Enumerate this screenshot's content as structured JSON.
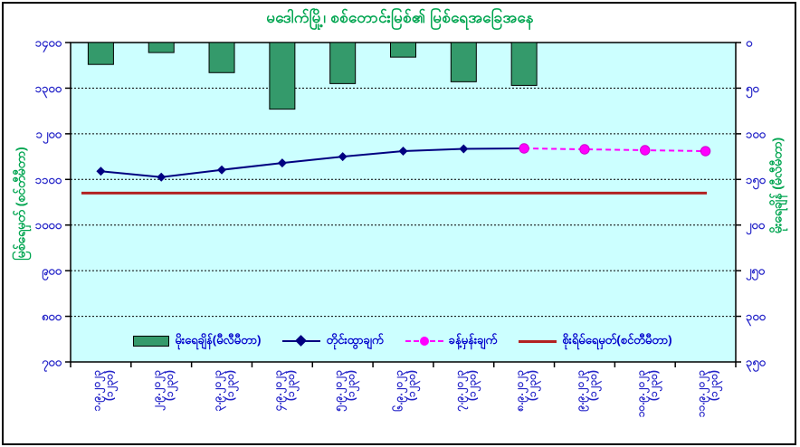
{
  "chart_data": {
    "type": "combo",
    "title": "မဒေါက်မြို့၊ စစ်တောင်းမြစ်၏ မြစ်ရေအခြေအနေ",
    "categories": [
      {
        "date": "၁.၉.၂၀၂၃",
        "time": "(၁၂၃၀)"
      },
      {
        "date": "၂.၉.၂၀၂၃",
        "time": "(၁၂၃၀)"
      },
      {
        "date": "၃.၉.၂၀၂၃",
        "time": "(၁၂၃၀)"
      },
      {
        "date": "၄.၉.၂၀၂၃",
        "time": "(၁၂၃၀)"
      },
      {
        "date": "၅.၉.၂၀၂၃",
        "time": "(၁၂၃၀)"
      },
      {
        "date": "၆.၉.၂၀၂၃",
        "time": "(၁၂၃၀)"
      },
      {
        "date": "၇.၉.၂၀၂၃",
        "time": "(၁၂၃၀)"
      },
      {
        "date": "၈.၉.၂၀၂၃",
        "time": "(၁၂၃၀)"
      },
      {
        "date": "၉.၉.၂၀၂၃",
        "time": "(၁၂၃၀)"
      },
      {
        "date": "၁၀.၉.၂၀၂၃",
        "time": "(၁၂၃၀)"
      },
      {
        "date": "၁၁.၉.၂၀၂၃",
        "time": "(၁၂၃၀)"
      }
    ],
    "series": [
      {
        "name": "မိုးရေချိန်(မီလီမီတာ)",
        "type": "bar",
        "axis": "right",
        "values": [
          24,
          11,
          33,
          73,
          45,
          16,
          43,
          47,
          null,
          null,
          null
        ]
      },
      {
        "name": "တိုင်းထွာချက်",
        "type": "line",
        "marker": "diamond",
        "axis": "left",
        "values": [
          1118,
          1105,
          1121,
          1136,
          1150,
          1162,
          1167,
          1168,
          null,
          null,
          null
        ]
      },
      {
        "name": "ခန့်မှန်းချက်",
        "type": "line-dashed",
        "marker": "circle",
        "axis": "left",
        "values": [
          null,
          null,
          null,
          null,
          null,
          null,
          null,
          1168,
          1166,
          1164,
          1162
        ]
      },
      {
        "name": "စိုးရိမ်ရေမှတ်(စင်တီမီတာ)",
        "type": "hline",
        "axis": "left",
        "value": 1070
      }
    ],
    "left_axis": {
      "label": "မြစ်ရေမှတ် (စင်တီမီတာ)",
      "min": 700,
      "max": 1400,
      "step": 100,
      "top_value": 1400,
      "tick_labels": [
        "၁၄၀၀",
        "၁၃၀၀",
        "၁၂၀၀",
        "၁၁၀၀",
        "၁၀၀၀",
        "၉၀၀",
        "၈၀၀",
        "၇၀၀"
      ]
    },
    "right_axis": {
      "label": "မိုးရေချိန် (မီလီမီတာ)",
      "min": 0,
      "max": 350,
      "step": 50,
      "inverted": true,
      "tick_labels": [
        "၀",
        "၅၀",
        "၁၀၀",
        "၁၅၀",
        "၂၀၀",
        "၂၅၀",
        "၃၀၀",
        "၃၅၀"
      ]
    },
    "grid": "horizontal-dotted",
    "legend_position": "bottom-inside"
  },
  "colors": {
    "frame": "#000000",
    "plot_bg": "#CCFFFF",
    "grid": "#000000",
    "title": "#00A550",
    "axis_title": "#00A550",
    "tick_label": "#2323C8",
    "legend_text": "#0000CC",
    "bar_fill": "#349A6B",
    "bar_border": "#000000",
    "measured": "#000080",
    "forecast": "#FF00FF",
    "forecast_edge": "#CC00CC",
    "danger": "#B22222"
  }
}
